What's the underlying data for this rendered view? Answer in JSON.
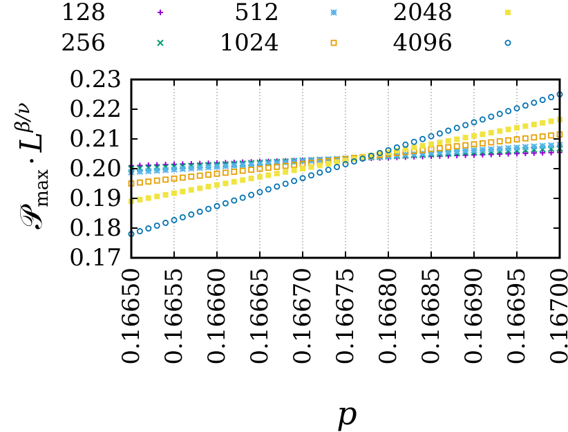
{
  "chart_data": {
    "type": "scatter",
    "title": "",
    "xlabel": "p",
    "ylabel": {
      "script_P": "𝒫",
      "subscript": "max",
      "dot": "·",
      "L": "L",
      "exponent": "β/ν"
    },
    "xlim": [
      0.1665,
      0.167
    ],
    "ylim": [
      0.17,
      0.23
    ],
    "xticks": [
      "0.16650",
      "0.16655",
      "0.16660",
      "0.16665",
      "0.16670",
      "0.16675",
      "0.16680",
      "0.16685",
      "0.16690",
      "0.16695",
      "0.16700"
    ],
    "yticks": [
      "0.17",
      "0.18",
      "0.19",
      "0.20",
      "0.21",
      "0.22",
      "0.23"
    ],
    "x_start": 0.1665,
    "x_step": 1e-05,
    "n_points": 51,
    "grid": "vertical dotted at x ticks",
    "legend_position": "top, outside plot",
    "series": [
      {
        "name": "128",
        "marker": "plus",
        "color": "#9400d3",
        "y_start": 0.201,
        "y_end": 0.2055
      },
      {
        "name": "256",
        "marker": "cross",
        "color": "#009e73",
        "y_start": 0.2,
        "y_end": 0.2068
      },
      {
        "name": "512",
        "marker": "star",
        "color": "#56b4e9",
        "y_start": 0.1988,
        "y_end": 0.208
      },
      {
        "name": "1024",
        "marker": "open-square",
        "color": "#e69f00",
        "y_start": 0.195,
        "y_end": 0.2115
      },
      {
        "name": "2048",
        "marker": "filled-square",
        "color": "#f0e442",
        "y_start": 0.189,
        "y_end": 0.2165
      },
      {
        "name": "4096",
        "marker": "open-circle",
        "color": "#0072b2",
        "y_start": 0.178,
        "y_end": 0.225
      }
    ]
  }
}
